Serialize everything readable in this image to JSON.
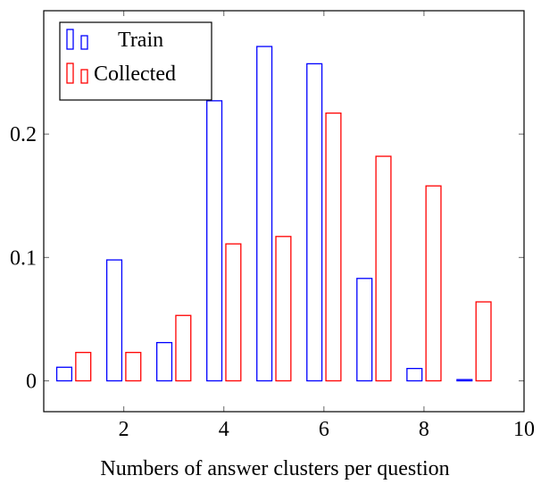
{
  "chart_data": {
    "type": "bar",
    "title": "",
    "xlabel": "Numbers of answer clusters per question",
    "ylabel": "",
    "xlim": [
      0.4,
      10
    ],
    "ylim": [
      -0.025,
      0.3
    ],
    "x": [
      1,
      2,
      3,
      4,
      5,
      6,
      7,
      8,
      9
    ],
    "xticks": [
      2,
      4,
      6,
      8,
      10
    ],
    "yticks": [
      0,
      0.1,
      0.2
    ],
    "xtick_labels": [
      "2",
      "4",
      "6",
      "8",
      "10"
    ],
    "ytick_labels": [
      "0",
      "0.1",
      "0.2"
    ],
    "grid": false,
    "legend_position": "top-left",
    "series": [
      {
        "name": "Train",
        "color": "#0000ff",
        "values": [
          0.011,
          0.098,
          0.031,
          0.227,
          0.271,
          0.257,
          0.083,
          0.01,
          0.001
        ]
      },
      {
        "name": "Collected",
        "color": "#ff0000",
        "values": [
          0.023,
          0.023,
          0.053,
          0.111,
          0.117,
          0.217,
          0.182,
          0.158,
          0.064
        ]
      }
    ]
  }
}
